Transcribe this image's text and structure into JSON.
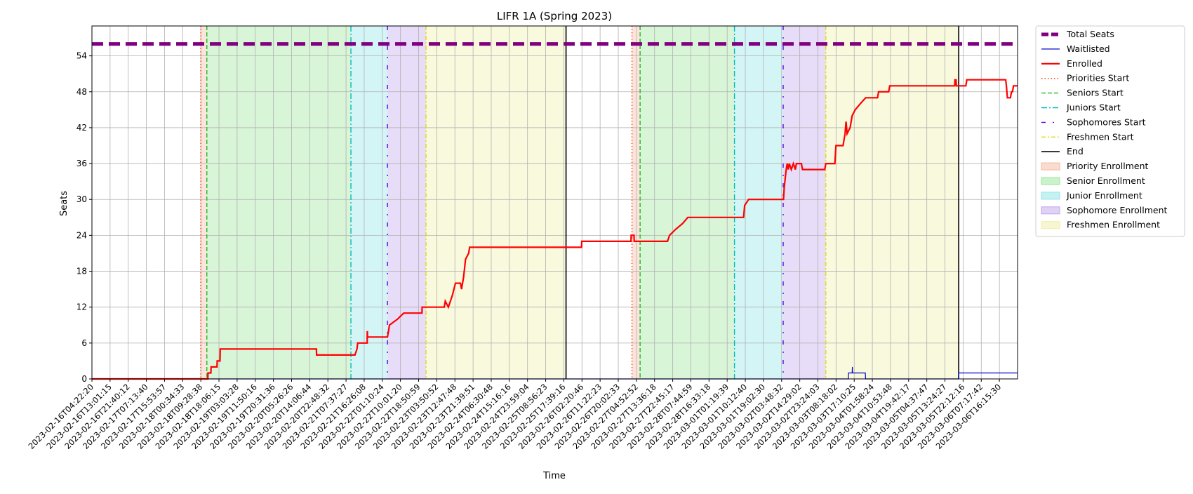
{
  "chart_data": {
    "type": "line",
    "title": "LIFR 1A (Spring 2023)",
    "xlabel": "Time",
    "ylabel": "Seats",
    "ylim": [
      0,
      59
    ],
    "yticks": [
      0,
      6,
      12,
      18,
      24,
      30,
      36,
      42,
      48,
      54
    ],
    "grid": true,
    "legend_position": "outside-right",
    "x_start": "2023-02-16T04:22:20",
    "x_end": "2023-03-07T04:30:00",
    "xtick_labels": [
      "2023-02-16T04:22:20",
      "2023-02-16T13:01:15",
      "2023-02-16T21:40:12",
      "2023-02-17T07:13:40",
      "2023-02-17T15:53:57",
      "2023-02-18T00:34:33",
      "2023-02-18T09:28:38",
      "2023-02-18T18:06:15",
      "2023-02-19T03:03:28",
      "2023-02-19T11:50:16",
      "2023-02-19T20:31:36",
      "2023-02-20T05:26:26",
      "2023-02-20T14:06:44",
      "2023-02-20T22:48:32",
      "2023-02-21T07:37:27",
      "2023-02-21T16:26:08",
      "2023-02-22T01:10:24",
      "2023-02-22T10:01:20",
      "2023-02-22T18:50:59",
      "2023-02-23T03:50:52",
      "2023-02-23T12:47:48",
      "2023-02-23T21:39:51",
      "2023-02-24T06:30:48",
      "2023-02-24T15:16:16",
      "2023-02-24T23:59:04",
      "2023-02-25T08:56:23",
      "2023-02-25T17:39:16",
      "2023-02-26T02:20:46",
      "2023-02-26T11:22:23",
      "2023-02-26T20:02:33",
      "2023-02-27T04:52:52",
      "2023-02-27T13:36:18",
      "2023-02-27T22:45:17",
      "2023-02-28T07:44:59",
      "2023-02-28T16:33:18",
      "2023-03-01T01:19:39",
      "2023-03-01T10:12:40",
      "2023-03-01T19:02:30",
      "2023-03-02T03:48:32",
      "2023-03-02T14:29:02",
      "2023-03-02T23:24:03",
      "2023-03-03T08:18:02",
      "2023-03-03T17:10:25",
      "2023-03-04T01:58:24",
      "2023-03-04T10:53:48",
      "2023-03-04T19:42:17",
      "2023-03-05T04:37:47",
      "2023-03-05T13:24:27",
      "2023-03-05T22:12:16",
      "2023-03-06T07:17:42",
      "2023-03-06T16:15:30"
    ],
    "total_seats": 56,
    "series": [
      {
        "name": "Total Seats",
        "color": "#800080",
        "style": "dashed-thick",
        "value": 56
      },
      {
        "name": "Waitlisted",
        "color": "#0000cc",
        "style": "solid-thin",
        "points": [
          [
            "2023-02-16T04:22:20",
            0
          ],
          [
            "2023-03-03T17:10:25",
            0
          ],
          [
            "2023-03-03T17:12:00",
            1
          ],
          [
            "2023-03-03T19:00:00",
            1
          ],
          [
            "2023-03-03T19:05:00",
            2
          ],
          [
            "2023-03-03T19:10:00",
            1
          ],
          [
            "2023-03-04T01:30:00",
            1
          ],
          [
            "2023-03-04T01:35:00",
            0
          ],
          [
            "2023-03-05T23:25:00",
            0
          ],
          [
            "2023-03-05T23:30:00",
            1
          ],
          [
            "2023-03-07T04:30:00",
            1
          ]
        ]
      },
      {
        "name": "Enrolled",
        "color": "#ff0000",
        "style": "solid-thick",
        "points": [
          [
            "2023-02-16T04:22:20",
            0
          ],
          [
            "2023-02-18T13:30:00",
            0
          ],
          [
            "2023-02-18T13:35:00",
            1
          ],
          [
            "2023-02-18T15:00:00",
            1
          ],
          [
            "2023-02-18T15:05:00",
            2
          ],
          [
            "2023-02-18T18:00:00",
            2
          ],
          [
            "2023-02-18T18:05:00",
            3
          ],
          [
            "2023-02-18T19:30:00",
            3
          ],
          [
            "2023-02-18T19:35:00",
            5
          ],
          [
            "2023-02-20T19:00:00",
            5
          ],
          [
            "2023-02-20T19:05:00",
            4
          ],
          [
            "2023-02-21T14:00:00",
            4
          ],
          [
            "2023-02-21T15:00:00",
            5
          ],
          [
            "2023-02-21T15:20:00",
            6
          ],
          [
            "2023-02-21T20:00:00",
            6
          ],
          [
            "2023-02-21T20:05:00",
            8
          ],
          [
            "2023-02-21T20:10:00",
            7
          ],
          [
            "2023-02-22T06:00:00",
            7
          ],
          [
            "2023-02-22T06:30:00",
            8
          ],
          [
            "2023-02-22T07:00:00",
            9
          ],
          [
            "2023-02-22T11:00:00",
            10
          ],
          [
            "2023-02-22T14:00:00",
            11
          ],
          [
            "2023-02-22T23:00:00",
            11
          ],
          [
            "2023-02-22T23:05:00",
            12
          ],
          [
            "2023-02-23T10:00:00",
            12
          ],
          [
            "2023-02-23T10:30:00",
            13
          ],
          [
            "2023-02-23T12:00:00",
            12
          ],
          [
            "2023-02-23T13:00:00",
            13
          ],
          [
            "2023-02-23T14:00:00",
            14
          ],
          [
            "2023-02-23T15:30:00",
            16
          ],
          [
            "2023-02-23T18:00:00",
            16
          ],
          [
            "2023-02-23T18:30:00",
            15
          ],
          [
            "2023-02-23T19:30:00",
            17
          ],
          [
            "2023-02-23T20:30:00",
            20
          ],
          [
            "2023-02-23T22:00:00",
            21
          ],
          [
            "2023-02-23T22:30:00",
            22
          ],
          [
            "2023-02-26T05:40:00",
            22
          ],
          [
            "2023-02-26T05:45:00",
            23
          ],
          [
            "2023-02-27T06:00:00",
            23
          ],
          [
            "2023-02-27T06:05:00",
            24
          ],
          [
            "2023-02-27T07:30:00",
            24
          ],
          [
            "2023-02-27T07:35:00",
            23
          ],
          [
            "2023-02-28T00:00:00",
            23
          ],
          [
            "2023-02-28T01:00:00",
            24
          ],
          [
            "2023-02-28T04:00:00",
            25
          ],
          [
            "2023-02-28T07:30:00",
            26
          ],
          [
            "2023-02-28T10:00:00",
            27
          ],
          [
            "2023-03-01T13:30:00",
            27
          ],
          [
            "2023-03-01T14:00:00",
            29
          ],
          [
            "2023-03-01T16:00:00",
            30
          ],
          [
            "2023-03-02T09:10:00",
            30
          ],
          [
            "2023-03-02T09:30:00",
            32
          ],
          [
            "2023-03-02T10:30:00",
            35
          ],
          [
            "2023-03-02T11:00:00",
            36
          ],
          [
            "2023-03-02T11:30:00",
            35
          ],
          [
            "2023-03-02T12:00:00",
            36
          ],
          [
            "2023-03-02T13:00:00",
            35
          ],
          [
            "2023-03-02T14:00:00",
            36
          ],
          [
            "2023-03-02T15:00:00",
            35
          ],
          [
            "2023-03-02T15:30:00",
            36
          ],
          [
            "2023-03-02T18:00:00",
            36
          ],
          [
            "2023-03-02T18:30:00",
            35
          ],
          [
            "2023-03-03T05:30:00",
            35
          ],
          [
            "2023-03-03T06:00:00",
            36
          ],
          [
            "2023-03-03T10:30:00",
            36
          ],
          [
            "2023-03-03T11:00:00",
            39
          ],
          [
            "2023-03-03T14:30:00",
            39
          ],
          [
            "2023-03-03T15:30:00",
            41
          ],
          [
            "2023-03-03T16:00:00",
            43
          ],
          [
            "2023-03-03T16:30:00",
            41
          ],
          [
            "2023-03-03T18:00:00",
            42
          ],
          [
            "2023-03-03T19:00:00",
            44
          ],
          [
            "2023-03-03T20:30:00",
            45
          ],
          [
            "2023-03-03T23:00:00",
            46
          ],
          [
            "2023-03-04T01:40:00",
            47
          ],
          [
            "2023-03-04T07:30:00",
            47
          ],
          [
            "2023-03-04T08:00:00",
            48
          ],
          [
            "2023-03-04T13:00:00",
            48
          ],
          [
            "2023-03-04T13:30:00",
            49
          ],
          [
            "2023-03-05T21:30:00",
            49
          ],
          [
            "2023-03-05T21:40:00",
            50
          ],
          [
            "2023-03-05T22:10:00",
            50
          ],
          [
            "2023-03-05T22:20:00",
            49
          ],
          [
            "2023-03-06T03:00:00",
            49
          ],
          [
            "2023-03-06T03:30:00",
            50
          ],
          [
            "2023-03-06T22:40:00",
            50
          ],
          [
            "2023-03-06T23:00:00",
            49
          ],
          [
            "2023-03-06T23:30:00",
            47
          ],
          [
            "2023-03-07T01:00:00",
            47
          ],
          [
            "2023-03-07T01:30:00",
            48
          ],
          [
            "2023-03-07T02:00:00",
            48
          ],
          [
            "2023-03-07T02:30:00",
            49
          ],
          [
            "2023-03-07T04:30:00",
            49
          ]
        ]
      }
    ],
    "phase_lines": [
      {
        "name": "Priorities Start",
        "color": "#ff3300",
        "style": "dotted",
        "times": [
          "2023-02-18T10:00:00",
          "2023-02-27T06:30:00"
        ]
      },
      {
        "name": "Seniors Start",
        "color": "#22bb22",
        "style": "dashed",
        "times": [
          "2023-02-18T13:00:00",
          "2023-02-27T10:30:00"
        ]
      },
      {
        "name": "Juniors Start",
        "color": "#00bbbb",
        "style": "dashdot",
        "times": [
          "2023-02-21T12:00:00",
          "2023-03-01T09:00:00"
        ]
      },
      {
        "name": "Sophomores Start",
        "color": "#6600ee",
        "style": "loose-dashdot",
        "times": [
          "2023-02-22T06:00:00",
          "2023-03-02T09:00:00"
        ]
      },
      {
        "name": "Freshmen Start",
        "color": "#dddd00",
        "style": "dashdot-yellow",
        "times": [
          "2023-02-23T01:00:00",
          "2023-03-03T06:00:00"
        ]
      },
      {
        "name": "End",
        "color": "#000000",
        "style": "solid",
        "times": [
          "2023-02-25T22:00:00",
          "2023-03-05T23:30:00"
        ]
      }
    ],
    "phase_spans": [
      {
        "name": "Priority Enrollment",
        "color": "#f4b8a0",
        "ranges": [
          [
            "2023-02-18T10:00:00",
            "2023-02-18T13:00:00"
          ],
          [
            "2023-02-27T06:30:00",
            "2023-02-27T10:30:00"
          ]
        ]
      },
      {
        "name": "Senior Enrollment",
        "color": "#99e699",
        "ranges": [
          [
            "2023-02-18T13:00:00",
            "2023-02-21T12:00:00"
          ],
          [
            "2023-02-27T10:30:00",
            "2023-03-01T09:00:00"
          ]
        ]
      },
      {
        "name": "Junior Enrollment",
        "color": "#8ee4e8",
        "ranges": [
          [
            "2023-02-21T12:00:00",
            "2023-02-22T06:00:00"
          ],
          [
            "2023-03-01T09:00:00",
            "2023-03-02T09:00:00"
          ]
        ]
      },
      {
        "name": "Sophomore Enrollment",
        "color": "#bfa6ec",
        "ranges": [
          [
            "2023-02-22T06:00:00",
            "2023-02-23T01:00:00"
          ],
          [
            "2023-03-02T09:00:00",
            "2023-03-03T06:00:00"
          ]
        ]
      },
      {
        "name": "Freshmen Enrollment",
        "color": "#eeeea6",
        "ranges": [
          [
            "2023-02-23T01:00:00",
            "2023-02-25T22:00:00"
          ],
          [
            "2023-03-03T06:00:00",
            "2023-03-05T23:30:00"
          ]
        ]
      }
    ],
    "legend": [
      "Total Seats",
      "Waitlisted",
      "Enrolled",
      "Priorities Start",
      "Seniors Start",
      "Juniors Start",
      "Sophomores Start",
      "Freshmen Start",
      "End",
      "Priority Enrollment",
      "Senior Enrollment",
      "Junior Enrollment",
      "Sophomore Enrollment",
      "Freshmen Enrollment"
    ]
  }
}
